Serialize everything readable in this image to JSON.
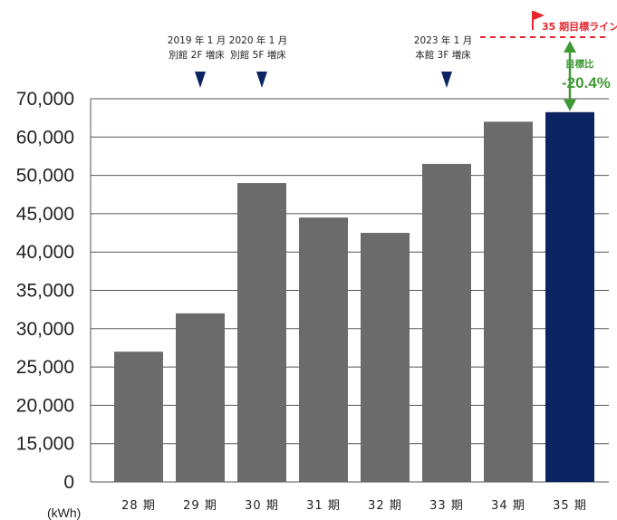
{
  "chart_data": {
    "type": "bar",
    "unit_label": "(kWh)",
    "categories": [
      "28 期",
      "29 期",
      "30 期",
      "31 期",
      "32 期",
      "33 期",
      "34 期",
      "35 期"
    ],
    "values": [
      27000,
      32000,
      49000,
      44500,
      42500,
      53000,
      64000,
      66500
    ],
    "y_ticks": [
      "0",
      "15,000",
      "20,000",
      "25,000",
      "30,000",
      "35,000",
      "40,000",
      "45,000",
      "50,000",
      "60,000",
      "70,000"
    ],
    "bar_colors": {
      "default": "#6b6b6b",
      "highlight": "#0c2461"
    },
    "highlight_index": 7,
    "annotations": [
      {
        "category_index": 1,
        "lines": [
          "2019 年 1 月",
          "別館 2F 増床"
        ]
      },
      {
        "category_index": 2,
        "lines": [
          "2020 年 1 月",
          "別館 5F 増床"
        ]
      },
      {
        "category_index": 5,
        "lines": [
          "2023 年 1 月",
          "本館 3F 増床"
        ]
      }
    ],
    "target_line": {
      "label": "35 期目標ライン",
      "color": "#e4272f"
    },
    "target_ratio": {
      "label": "目標比",
      "value": "-20.4%",
      "color": "#3f9a35"
    }
  }
}
